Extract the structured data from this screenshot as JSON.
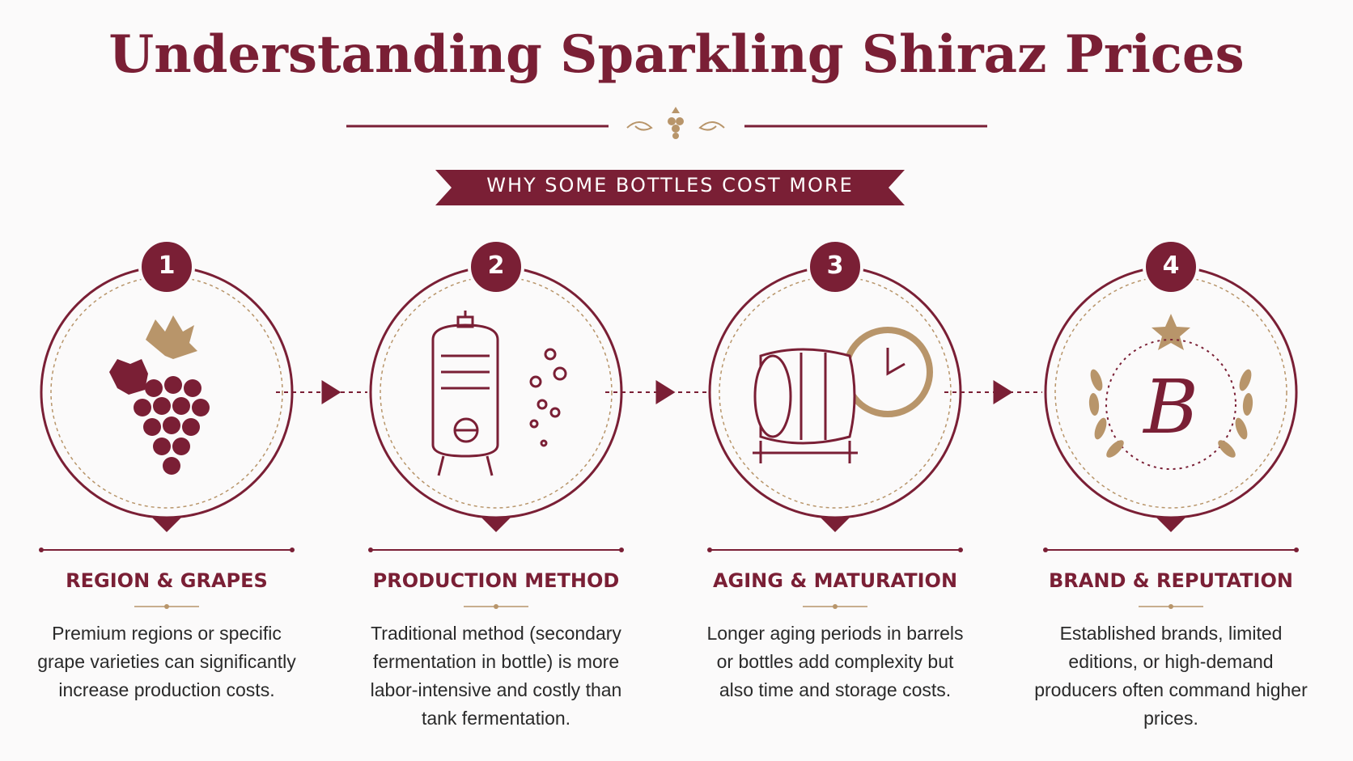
{
  "header": {
    "title": "Understanding Sparkling Shiraz Prices",
    "banner": "WHY SOME BOTTLES COST MORE"
  },
  "steps": [
    {
      "number": "1",
      "heading": "REGION & GRAPES",
      "text": "Premium regions or specific grape varieties can significantly increase production costs."
    },
    {
      "number": "2",
      "heading": "PRODUCTION METHOD",
      "text": "Traditional method (secondary fermentation in bottle) is more labor-intensive and costly than tank fermentation."
    },
    {
      "number": "3",
      "heading": "AGING & MATURATION",
      "text": "Longer aging periods in barrels or bottles add complexity but also time and storage costs."
    },
    {
      "number": "4",
      "heading": "BRAND & REPUTATION",
      "text": "Established brands, limited editions, or high-demand producers often command higher prices."
    }
  ]
}
